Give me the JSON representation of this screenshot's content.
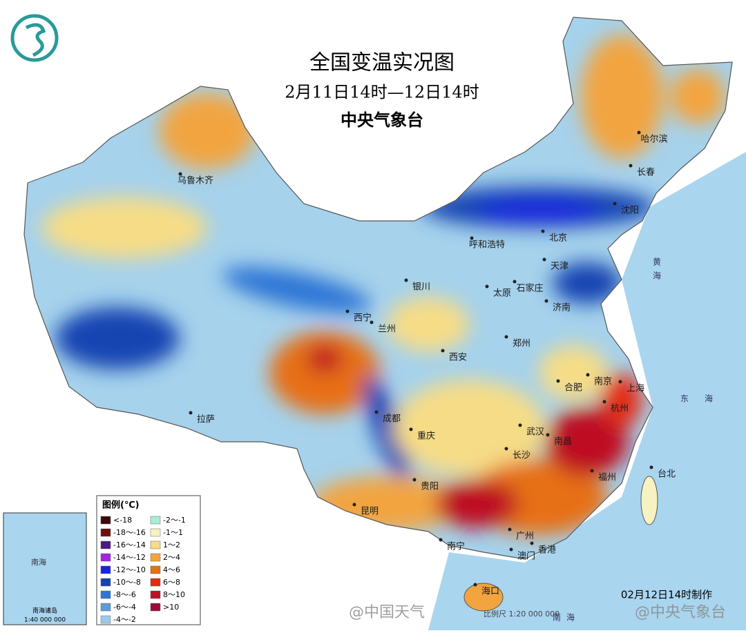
{
  "header": {
    "title": "全国变温实况图",
    "subtitle": "2月11日14时—12日14时",
    "agency": "中央气象台"
  },
  "cities": [
    "乌鲁木齐",
    "拉萨",
    "西宁",
    "兰州",
    "银川",
    "呼和浩特",
    "北京",
    "天津",
    "石家庄",
    "太原",
    "济南",
    "郑州",
    "西安",
    "成都",
    "重庆",
    "贵阳",
    "昆明",
    "南宁",
    "广州",
    "香港",
    "澳门",
    "海口",
    "长沙",
    "武汉",
    "南昌",
    "合肥",
    "南京",
    "上海",
    "杭州",
    "福州",
    "台北",
    "沈阳",
    "长春",
    "哈尔滨"
  ],
  "seas": [
    "黄",
    "海",
    "东",
    "海",
    "南",
    "海"
  ],
  "legend": {
    "title": "图例(℃)",
    "items": [
      {
        "label": "<-18",
        "color": "#3c0808"
      },
      {
        "label": "-18～-16",
        "color": "#6e1010"
      },
      {
        "label": "-16～-14",
        "color": "#4c1a82"
      },
      {
        "label": "-14～-12",
        "color": "#a226e0"
      },
      {
        "label": "-12～-10",
        "color": "#1a22e6"
      },
      {
        "label": "-10～-8",
        "color": "#1544b2"
      },
      {
        "label": "-8～-6",
        "color": "#2e76d6"
      },
      {
        "label": "-6～-4",
        "color": "#5e9cd8"
      },
      {
        "label": "-4～-2",
        "color": "#9ccaea"
      },
      {
        "label": "-2～-1",
        "color": "#a8ecd6"
      },
      {
        "label": "-1～1",
        "color": "#f6f2c2"
      },
      {
        "label": "1～2",
        "color": "#f6dc86"
      },
      {
        "label": "2～4",
        "color": "#f2a440"
      },
      {
        "label": "4～6",
        "color": "#e67012"
      },
      {
        "label": "6～8",
        "color": "#e22c12"
      },
      {
        "label": "8～10",
        "color": "#be1024"
      },
      {
        "label": ">10",
        "color": "#9c0a3a"
      }
    ]
  },
  "inset": {
    "sea": "南海",
    "label": "南海诸岛",
    "scale": "1:40 000 000"
  },
  "footer": {
    "made": "02月12日14时制作",
    "watermark": "@中国天气",
    "watermark2": "@中央气象台",
    "scale": "比例尺 1:20 000 000"
  }
}
